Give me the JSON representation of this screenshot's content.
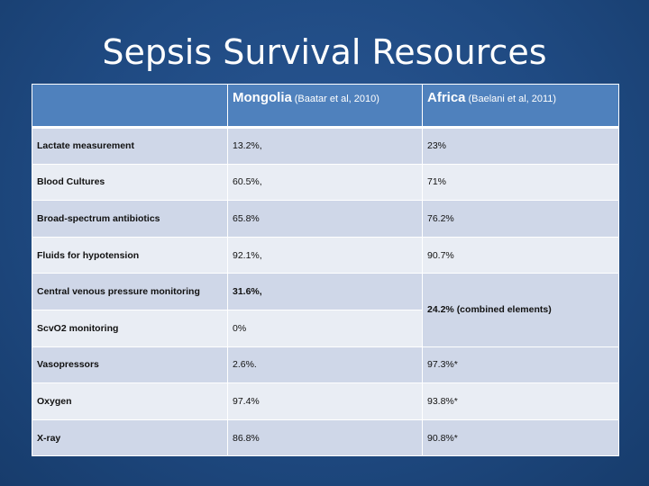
{
  "slide": {
    "title": "Sepsis Survival Resources"
  },
  "table": {
    "headers": {
      "col1": {
        "main": "Mongolia",
        "sub": "(Baatar et al, 2010)"
      },
      "col2": {
        "main": "Africa",
        "sub": "(Baelani et al, 2011)"
      }
    },
    "rows": [
      {
        "label": "Lactate measurement",
        "mongolia": "13.2%,",
        "africa": "23%"
      },
      {
        "label": "Blood Cultures",
        "mongolia": "60.5%,",
        "africa": "71%"
      },
      {
        "label": "Broad-spectrum antibiotics",
        "mongolia": "65.8%",
        "africa": "76.2%"
      },
      {
        "label": "Fluids for hypotension",
        "mongolia": "92.1%,",
        "africa": "90.7%"
      },
      {
        "label": "Central venous pressure monitoring",
        "mongolia": "31.6%,",
        "africa": "24.2% (combined elements)"
      },
      {
        "label": "ScvO2 monitoring",
        "mongolia": "0%"
      },
      {
        "label": "Vasopressors",
        "mongolia": "2.6%.",
        "africa": "97.3%*"
      },
      {
        "label": "Oxygen",
        "mongolia": "97.4%",
        "africa": "93.8%*"
      },
      {
        "label": "X-ray",
        "mongolia": "86.8%",
        "africa": "90.8%*"
      }
    ]
  }
}
